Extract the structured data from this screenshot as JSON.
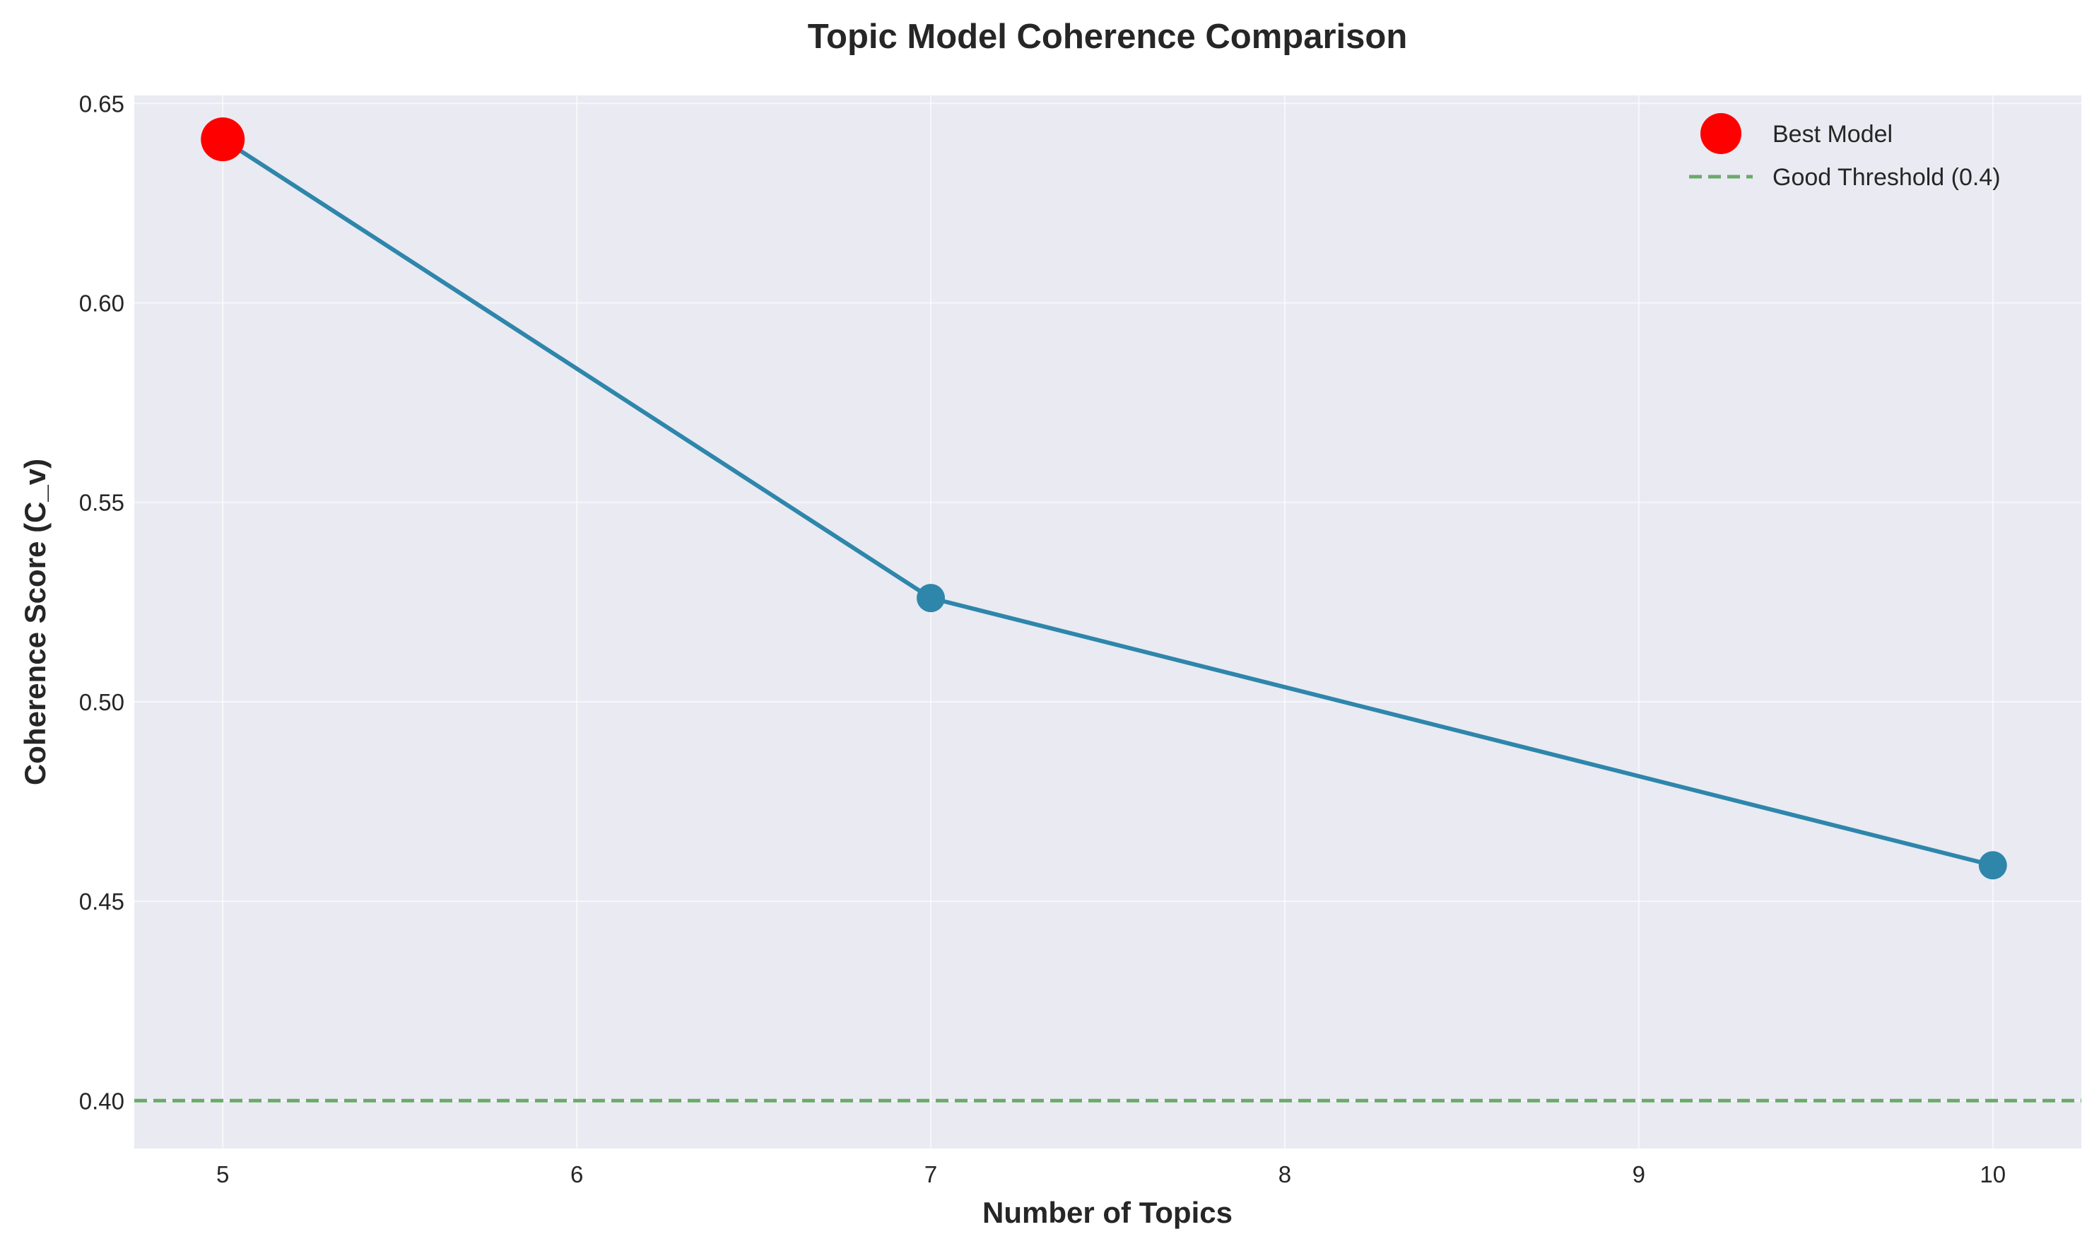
{
  "chart_data": {
    "type": "line",
    "title": "Topic Model Coherence Comparison",
    "xlabel": "Number of Topics",
    "ylabel": "Coherence Score (C_v)",
    "xlim": [
      4.75,
      10.25
    ],
    "ylim": [
      0.388,
      0.652
    ],
    "x_ticks": [
      5,
      6,
      7,
      8,
      9,
      10
    ],
    "y_ticks": [
      0.4,
      0.45,
      0.5,
      0.55,
      0.6,
      0.65
    ],
    "y_tick_labels": [
      "0.40",
      "0.45",
      "0.50",
      "0.55",
      "0.60",
      "0.65"
    ],
    "grid": true,
    "background_color": "#eaeaf2",
    "series": [
      {
        "x": [
          5,
          7,
          10
        ],
        "y": [
          0.641,
          0.526,
          0.459
        ],
        "color": "#2e86ab",
        "marker": "circle"
      }
    ],
    "best_model": {
      "name": "Best Model",
      "x": 5,
      "y": 0.641,
      "color": "#ff0000"
    },
    "threshold": {
      "name": "Good Threshold (0.4)",
      "y": 0.4,
      "color": "#6aaa6a",
      "style": "dashed"
    },
    "legend_position": "top-right"
  }
}
